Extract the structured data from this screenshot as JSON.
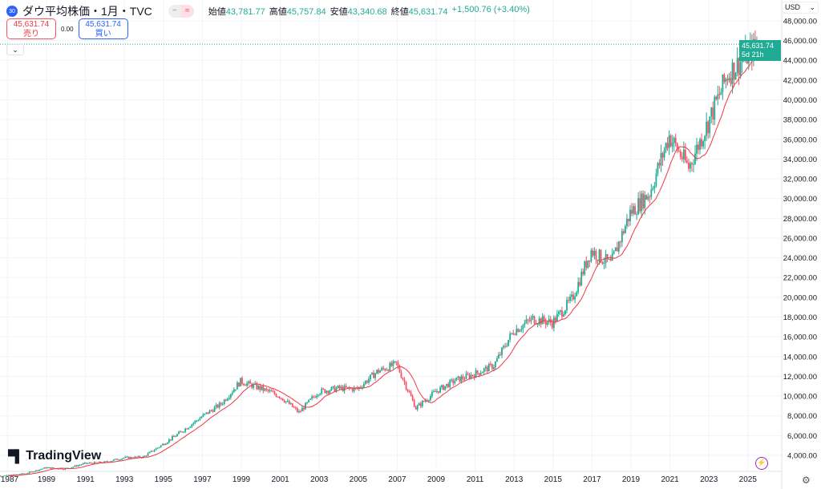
{
  "header": {
    "symbol_badge": "30",
    "title": "ダウ平均株価・1月・TVC",
    "open_label": "始値",
    "open": "43,781.77",
    "high_label": "高値",
    "high": "45,757.84",
    "low_label": "安値",
    "low": "43,340.68",
    "close_label": "終値",
    "close": "45,631.74",
    "change": "+1,500.76 (+3.40%)"
  },
  "trade": {
    "sell_price": "45,631.74",
    "sell_label": "売り",
    "spread": "0.00",
    "buy_price": "45,631.74",
    "buy_label": "買い"
  },
  "currency": "USD",
  "last_price": {
    "value": "45,631.74",
    "countdown": "5d 21h"
  },
  "logo": "TradingView",
  "colors": {
    "up": "#22ab94",
    "down": "#f7525f",
    "ma": "#f23645",
    "grid": "#f0f3fa"
  },
  "chart_data": {
    "type": "candlestick",
    "interval": "1M",
    "y_ticks": [
      "4,000.00",
      "6,000.00",
      "8,000.00",
      "10,000.00",
      "12,000.00",
      "14,000.00",
      "16,000.00",
      "18,000.00",
      "20,000.00",
      "22,000.00",
      "24,000.00",
      "26,000.00",
      "28,000.00",
      "30,000.00",
      "32,000.00",
      "34,000.00",
      "36,000.00",
      "38,000.00",
      "40,000.00",
      "42,000.00",
      "44,000.00",
      "46,000.00",
      "48,000.00"
    ],
    "x_ticks": [
      "1987",
      "1989",
      "1991",
      "1993",
      "1995",
      "1997",
      "1999",
      "2001",
      "2003",
      "2005",
      "2007",
      "2009",
      "2011",
      "2013",
      "2015",
      "2017",
      "2019",
      "2021",
      "2023",
      "2025"
    ],
    "ylim": [
      2000,
      49000
    ],
    "grid": true,
    "years": [
      1986,
      1987,
      1988,
      1989,
      1990,
      1991,
      1992,
      1993,
      1994,
      1995,
      1996,
      1997,
      1998,
      1999,
      2000,
      2001,
      2002,
      2003,
      2004,
      2005,
      2006,
      2007,
      2008,
      2009,
      2010,
      2011,
      2012,
      2013,
      2014,
      2015,
      2016,
      2017,
      2018,
      2019,
      2020,
      2021,
      2022,
      2023,
      2024,
      2025.6
    ],
    "approx_close": [
      1900,
      1950,
      2170,
      2750,
      2630,
      3170,
      3300,
      3750,
      3830,
      5100,
      6450,
      7900,
      9200,
      11500,
      10790,
      10020,
      8340,
      10450,
      10780,
      10720,
      12460,
      13260,
      8780,
      10430,
      11580,
      12220,
      13100,
      16580,
      17820,
      17430,
      19760,
      24720,
      23330,
      28540,
      30600,
      36340,
      33150,
      37690,
      42540,
      45631.74
    ],
    "moving_average": true
  }
}
